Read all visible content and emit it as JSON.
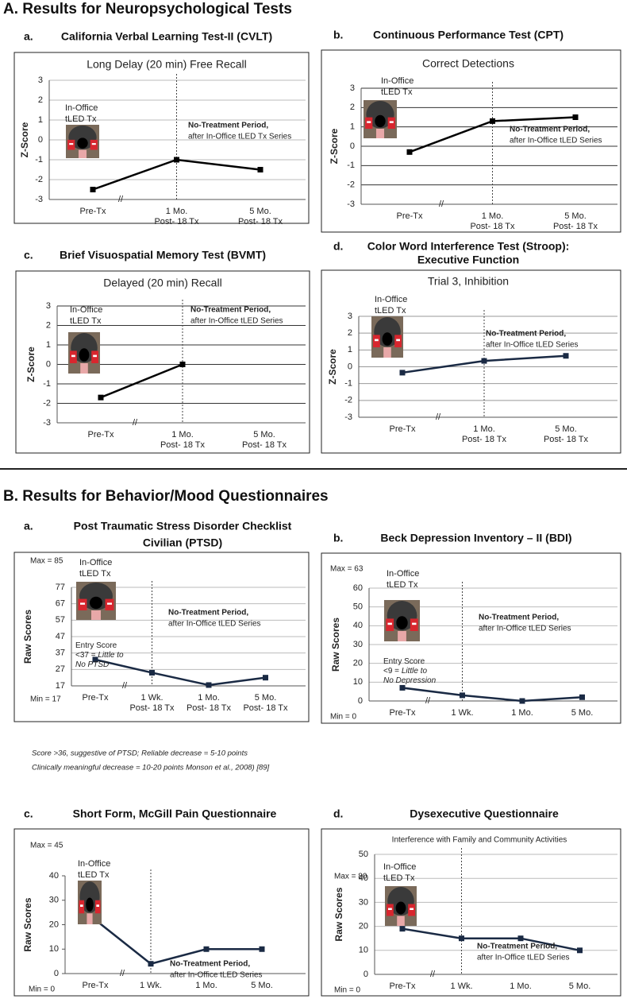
{
  "sections": [
    "A. Results for Neuropsychological Tests",
    "B. Results for Behavior/Mood Questionnaires"
  ],
  "footnote": [
    "Score >36, suggestive of PTSD; Reliable decrease = 5-10 points",
    "Clinically meaningful decrease = 10-20 points Monson et al., 2008) [89]"
  ],
  "chart_data": [
    {
      "type": "line",
      "panel_label": "a.",
      "title": "California Verbal Learning Test-II (CVLT)",
      "subtitle": "Long Delay (20 min) Free Recall",
      "y_label": "Z-Score",
      "categories": [
        "Pre-Tx",
        [
          "1 Mo.",
          "Post- 18 Tx"
        ],
        [
          "5 Mo.",
          "Post- 18 Tx"
        ]
      ],
      "values": [
        -2.5,
        -1,
        -1.5
      ],
      "color": "#000000",
      "ylim": [
        -3,
        3
      ],
      "yticks": [
        -3,
        -2,
        -1,
        0,
        1,
        2,
        3
      ],
      "grid": true,
      "grid_color": "#bbbbbb",
      "office_label": [
        "In-Office",
        "tLED Tx"
      ],
      "period_label": [
        "No-Treatment Period,",
        "after In-Office tLED Tx Series"
      ],
      "break_mark": "//"
    },
    {
      "type": "line",
      "panel_label": "b.",
      "title": "Continuous Performance Test (CPT)",
      "subtitle": "Correct Detections",
      "y_label": "Z-Score",
      "categories": [
        "Pre-Tx",
        [
          "1 Mo.",
          "Post- 18 Tx"
        ],
        [
          "5 Mo.",
          "Post- 18 Tx"
        ]
      ],
      "values": [
        -0.3,
        1.3,
        1.5
      ],
      "color": "#000000",
      "ylim": [
        -3,
        3
      ],
      "yticks": [
        -3,
        -2,
        -1,
        0,
        1,
        2,
        3
      ],
      "grid": true,
      "grid_color": "#333333",
      "office_label": [
        "In-Office",
        "tLED Tx"
      ],
      "period_label": [
        "No-Treatment Period,",
        "after In-Office tLED Series"
      ],
      "break_mark": "//"
    },
    {
      "type": "line",
      "panel_label": "c.",
      "title": "Brief Visuospatial Memory Test (BVMT)",
      "subtitle": "Delayed (20 min) Recall",
      "y_label": "Z-Score",
      "categories": [
        "Pre-Tx",
        [
          "1 Mo.",
          "Post- 18 Tx"
        ],
        [
          "5 Mo.",
          "Post- 18 Tx"
        ]
      ],
      "values": [
        -1.7,
        0,
        null
      ],
      "color": "#000000",
      "ylim": [
        -3,
        3
      ],
      "yticks": [
        -3,
        -2,
        -1,
        0,
        1,
        2,
        3
      ],
      "grid": true,
      "grid_color": "#333333",
      "office_label": [
        "In-Office",
        "tLED Tx"
      ],
      "period_label": [
        "No-Treatment Period,",
        "after In-Office tLED Series"
      ],
      "break_mark": "//"
    },
    {
      "type": "line",
      "panel_label": "d.",
      "title": [
        "Color Word Interference Test (Stroop):",
        "Executive Function"
      ],
      "subtitle": "Trial 3, Inhibition",
      "y_label": "Z-Score",
      "categories": [
        "Pre-Tx",
        [
          "1 Mo.",
          "Post- 18 Tx"
        ],
        [
          "5 Mo.",
          "Post- 18 Tx"
        ]
      ],
      "values": [
        -0.35,
        0.35,
        0.65
      ],
      "color": "#1a2a44",
      "ylim": [
        -3,
        3
      ],
      "yticks": [
        -3,
        -2,
        -1,
        0,
        1,
        2,
        3
      ],
      "grid": true,
      "grid_color": "#999999",
      "office_label": [
        "In-Office",
        "tLED Tx"
      ],
      "period_label": [
        "No-Treatment Period,",
        "after In-Office tLED Series"
      ],
      "break_mark": "//"
    },
    {
      "type": "line",
      "panel_label": "a.",
      "title": [
        "Post Traumatic Stress Disorder Checklist",
        "Civilian (PTSD)"
      ],
      "y_label": "Raw Scores",
      "categories": [
        "Pre-Tx",
        [
          "1 Wk.",
          "Post- 18 Tx"
        ],
        [
          "1 Mo.",
          "Post- 18 Tx"
        ],
        [
          "5 Mo.",
          "Post- 18 Tx"
        ]
      ],
      "values": [
        33,
        25,
        17.5,
        22
      ],
      "color": "#1a2a44",
      "ylim": [
        17,
        77
      ],
      "yticks": [
        17,
        27,
        37,
        47,
        57,
        67,
        77
      ],
      "grid": true,
      "grid_color": "#bbbbbb",
      "office_label": [
        "In-Office",
        "tLED Tx"
      ],
      "period_label": [
        "No-Treatment Period,",
        "after In-Office tLED Series"
      ],
      "break_mark": "//",
      "max_label": "Max = 85",
      "min_label": "Min = 17",
      "entry_note": [
        [
          {
            "text": "Entry Score"
          }
        ],
        [
          {
            "text": "<37 = "
          },
          {
            "text": "Little to",
            "italic": true
          }
        ],
        [
          {
            "text": "No PTSD",
            "italic": true
          }
        ]
      ]
    },
    {
      "type": "line",
      "panel_label": "b.",
      "title": "Beck Depression Inventory – II (BDI)",
      "y_label": "Raw Scores",
      "categories": [
        "Pre-Tx",
        "1 Wk.",
        "1 Mo.",
        "5 Mo."
      ],
      "values": [
        7,
        3,
        0,
        2
      ],
      "color": "#1a2a44",
      "ylim": [
        0,
        60
      ],
      "yticks": [
        0,
        10,
        20,
        30,
        40,
        50,
        60
      ],
      "grid": true,
      "grid_color": "#bbbbbb",
      "office_label": [
        "In-Office",
        "tLED Tx"
      ],
      "period_label": [
        "No-Treatment Period,",
        "after In-Office tLED Series"
      ],
      "break_mark": "//",
      "max_label": "Max = 63",
      "min_label": "Min = 0",
      "entry_note": [
        [
          {
            "text": "Entry Score"
          }
        ],
        [
          {
            "text": "<9 = "
          },
          {
            "text": "Little to",
            "italic": true
          }
        ],
        [
          {
            "text": "No Depression",
            "italic": true
          }
        ]
      ]
    },
    {
      "type": "line",
      "panel_label": "c.",
      "title": "Short Form, McGill Pain Questionnaire",
      "y_label": "Raw Scores",
      "categories": [
        "Pre-Tx",
        "1 Wk.",
        "1 Mo.",
        "5 Mo."
      ],
      "values": [
        22,
        4,
        10,
        10
      ],
      "color": "#1a2a44",
      "ylim": [
        0,
        40
      ],
      "yticks": [
        0,
        10,
        20,
        30,
        40
      ],
      "grid": false,
      "grid_color": "#bbbbbb",
      "office_label": [
        "In-Office",
        "tLED Tx"
      ],
      "period_label": [
        "No-Treatment Period,",
        "after In-Office tLED Series"
      ],
      "break_mark": "//",
      "max_label": "Max = 45",
      "min_label": "Min = 0"
    },
    {
      "type": "line",
      "panel_label": "d.",
      "title": "Dysexecutive Questionnaire",
      "subtitle": "Interference with Family and Community Activities",
      "y_label": "Raw Scores",
      "categories": [
        "Pre-Tx",
        "1 Wk.",
        "1 Mo.",
        "5 Mo."
      ],
      "values": [
        19,
        15,
        15,
        10
      ],
      "color": "#1a2a44",
      "ylim": [
        0,
        50
      ],
      "yticks": [
        0,
        10,
        20,
        30,
        40,
        50
      ],
      "grid": true,
      "grid_color": "#bbbbbb",
      "office_label": [
        "In-Office",
        "tLED Tx"
      ],
      "period_label": [
        "No-Treatment Period,",
        "after In-Office tLED Series"
      ],
      "break_mark": "//",
      "max_label": "Max = 80",
      "min_label": "Min = 0"
    }
  ]
}
